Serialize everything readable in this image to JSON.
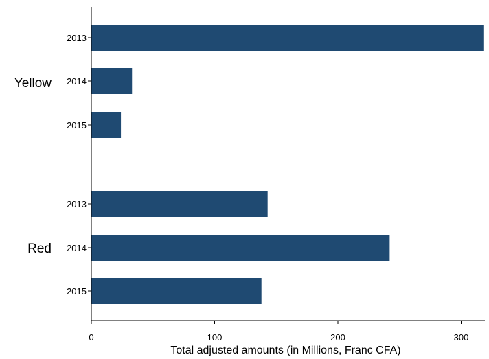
{
  "chart_data": {
    "type": "bar",
    "orientation": "horizontal",
    "title": "",
    "xlabel": "Total adjusted amounts (in Millions, Franc CFA)",
    "ylabel": "",
    "xlim": [
      0,
      320
    ],
    "xticks": [
      0,
      100,
      200,
      300
    ],
    "grid": false,
    "legend": "none",
    "bar_color": "#1f4a72",
    "groups": [
      {
        "label": "Yellow",
        "categories": [
          "2013",
          "2014",
          "2015"
        ],
        "values": [
          318,
          33,
          24
        ]
      },
      {
        "label": "Red",
        "categories": [
          "2013",
          "2014",
          "2015"
        ],
        "values": [
          143,
          242,
          138
        ]
      }
    ]
  }
}
